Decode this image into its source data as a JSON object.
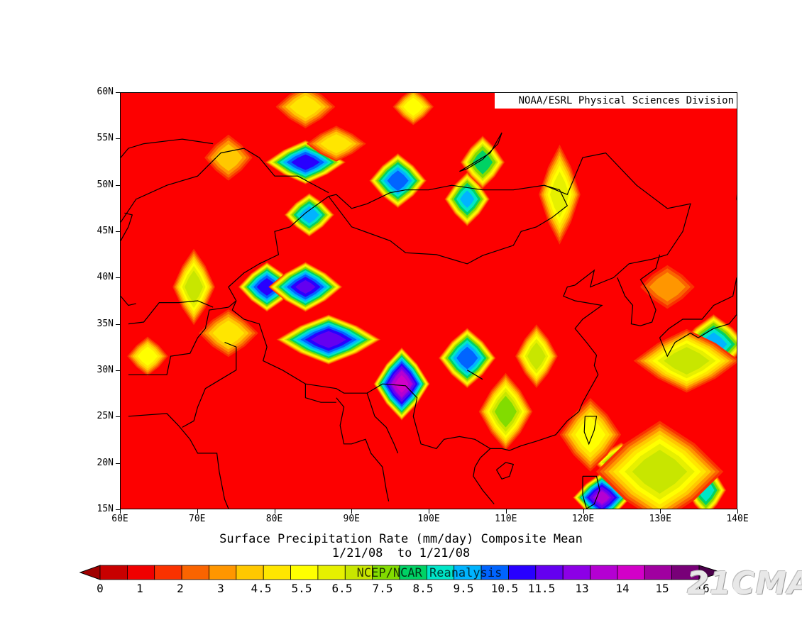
{
  "map": {
    "credit": "NOAA/ESRL Physical Sciences Division",
    "lat_ticks": [
      "60N",
      "55N",
      "50N",
      "45N",
      "40N",
      "35N",
      "30N",
      "25N",
      "20N",
      "15N"
    ],
    "lon_ticks": [
      "60E",
      "70E",
      "80E",
      "90E",
      "100E",
      "110E",
      "120E",
      "130E",
      "140E"
    ],
    "extent": {
      "lon_min": 60,
      "lon_max": 140,
      "lat_min": 15,
      "lat_max": 60
    },
    "background_color": "#fd0000",
    "blobs": [
      {
        "lon": 84,
        "lat": 52.5,
        "peak": 11,
        "rx": 3.5,
        "ry": 1.6
      },
      {
        "lon": 96,
        "lat": 50.5,
        "peak": 10,
        "rx": 2.5,
        "ry": 2
      },
      {
        "lon": 105,
        "lat": 48.5,
        "peak": 8.5,
        "rx": 2,
        "ry": 2
      },
      {
        "lon": 107,
        "lat": 52.5,
        "peak": 7,
        "rx": 2,
        "ry": 2
      },
      {
        "lon": 84.5,
        "lat": 46.8,
        "peak": 9,
        "rx": 2.2,
        "ry": 1.6
      },
      {
        "lon": 79,
        "lat": 39,
        "peak": 11,
        "rx": 2.5,
        "ry": 1.8
      },
      {
        "lon": 84,
        "lat": 39,
        "peak": 11.5,
        "rx": 3.2,
        "ry": 1.8
      },
      {
        "lon": 87,
        "lat": 33.3,
        "peak": 12,
        "rx": 4.5,
        "ry": 1.8
      },
      {
        "lon": 96.5,
        "lat": 28.5,
        "peak": 14,
        "rx": 2.4,
        "ry": 2.6
      },
      {
        "lon": 105,
        "lat": 31.3,
        "peak": 10,
        "rx": 2.5,
        "ry": 2.2
      },
      {
        "lon": 69.5,
        "lat": 39,
        "peak": 5,
        "rx": 2,
        "ry": 3
      },
      {
        "lon": 63.5,
        "lat": 31.5,
        "peak": 4,
        "rx": 2,
        "ry": 1.6
      },
      {
        "lon": 74,
        "lat": 34,
        "peak": 3.5,
        "rx": 3,
        "ry": 2
      },
      {
        "lon": 114,
        "lat": 31.5,
        "peak": 5,
        "rx": 2,
        "ry": 2.5
      },
      {
        "lon": 110,
        "lat": 25.5,
        "peak": 5.5,
        "rx": 2.5,
        "ry": 3
      },
      {
        "lon": 117,
        "lat": 49,
        "peak": 4.5,
        "rx": 2,
        "ry": 4
      },
      {
        "lon": 98,
        "lat": 58.5,
        "peak": 4,
        "rx": 2,
        "ry": 1.5
      },
      {
        "lon": 88,
        "lat": 54.5,
        "peak": 3.5,
        "rx": 3,
        "ry": 1.5
      },
      {
        "lon": 74,
        "lat": 53,
        "peak": 3,
        "rx": 2.5,
        "ry": 2
      },
      {
        "lon": 84,
        "lat": 58.5,
        "peak": 3.5,
        "rx": 3,
        "ry": 1.8
      },
      {
        "lon": 137,
        "lat": 32.8,
        "peak": 9,
        "rx": 3,
        "ry": 2.2
      },
      {
        "lon": 133.5,
        "lat": 31,
        "peak": 5,
        "rx": 5,
        "ry": 2.5
      },
      {
        "lon": 122.5,
        "lat": 16.2,
        "peak": 13,
        "rx": 2.5,
        "ry": 1.8
      },
      {
        "lon": 125,
        "lat": 20,
        "peak": 7,
        "rx": 2.5,
        "ry": 1.5
      },
      {
        "lon": 136,
        "lat": 17,
        "peak": 8,
        "rx": 1.8,
        "ry": 2
      },
      {
        "lon": 130,
        "lat": 19,
        "peak": 5,
        "rx": 6,
        "ry": 4
      },
      {
        "lon": 121,
        "lat": 23,
        "peak": 4,
        "rx": 3,
        "ry": 3
      },
      {
        "lon": 131,
        "lat": 39,
        "peak": 2.5,
        "rx": 3,
        "ry": 2
      }
    ]
  },
  "title": {
    "line1": "Surface Precipitation Rate (mm/day) Composite Mean",
    "line2": "1/21/08  to 1/21/08"
  },
  "colorbar": {
    "dataset_label": "NCEP/NCAR Reanalysis",
    "labels": [
      "0",
      "1",
      "2",
      "3",
      "4.5",
      "5.5",
      "6.5",
      "7.5",
      "8.5",
      "9.5",
      "10.5",
      "11.5",
      "13",
      "14",
      "15",
      "16"
    ],
    "colors": [
      "#c80000",
      "#f00000",
      "#fa3200",
      "#fa6400",
      "#ff9600",
      "#ffc800",
      "#ffe600",
      "#ffff00",
      "#e6f000",
      "#c8e600",
      "#82dc00",
      "#00d264",
      "#00e6c8",
      "#00b4ff",
      "#0064ff",
      "#2800ff",
      "#6400f0",
      "#8c00e6",
      "#b400d2",
      "#d200c8",
      "#a000a0",
      "#780078"
    ],
    "watermark": "21CMA"
  }
}
